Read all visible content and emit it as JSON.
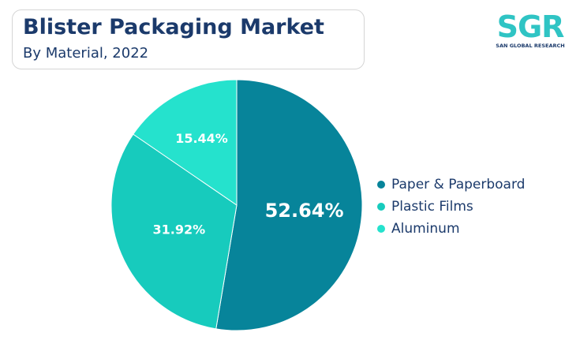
{
  "header": {
    "title": "Blister Packaging Market",
    "subtitle": "By Material, 2022"
  },
  "logo": {
    "mark": "SGR",
    "name": "SAN GLOBAL RESEARCH"
  },
  "chart_data": {
    "type": "pie",
    "title": "Blister Packaging Market",
    "subtitle": "By Material, 2022",
    "start_angle_deg": 0,
    "direction": "clockwise",
    "legend_position": "right",
    "slices": [
      {
        "label": "Paper & Paperboard",
        "value": 52.64,
        "display": "52.64%",
        "color": "#07849a"
      },
      {
        "label": "Plastic Films",
        "value": 31.92,
        "display": "31.92%",
        "color": "#17cbbd"
      },
      {
        "label": "Aluminum",
        "value": 15.44,
        "display": "15.44%",
        "color": "#25e2cd"
      }
    ]
  }
}
